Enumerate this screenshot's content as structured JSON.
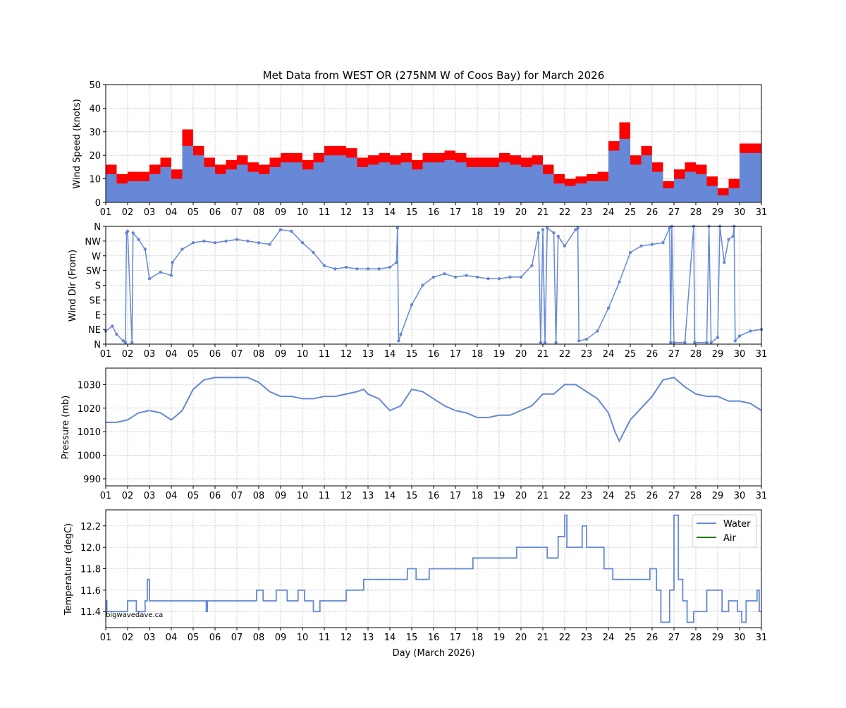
{
  "title": "Met Data from WEST OR (275NM W of Coos Bay) for March 2026",
  "watermark": "bigwavedave.ca",
  "colors": {
    "mean": "#6688d6",
    "gust": "#ff0000",
    "water": "#6688d6",
    "air": "#008000"
  },
  "chart_data": [
    {
      "type": "area",
      "ylabel": "Wind Speed (knots)",
      "ylim": [
        0,
        50
      ],
      "yticks": [
        "0",
        "10",
        "20",
        "30",
        "40",
        "50"
      ],
      "xlim": [
        1,
        31
      ],
      "xticks": [
        "01",
        "02",
        "03",
        "04",
        "05",
        "06",
        "07",
        "08",
        "09",
        "10",
        "11",
        "12",
        "13",
        "14",
        "15",
        "16",
        "17",
        "18",
        "19",
        "20",
        "21",
        "22",
        "23",
        "24",
        "25",
        "26",
        "27",
        "28",
        "29",
        "30",
        "31"
      ],
      "x_start": 1,
      "x_step": 0.5,
      "series": [
        {
          "name": "Gust",
          "values": [
            16,
            12,
            13,
            13,
            16,
            19,
            14,
            31,
            24,
            19,
            16,
            18,
            20,
            17,
            16,
            19,
            21,
            21,
            18,
            21,
            24,
            24,
            23,
            19,
            20,
            21,
            20,
            21,
            18,
            21,
            21,
            22,
            21,
            19,
            19,
            19,
            21,
            20,
            19,
            20,
            16,
            12,
            10,
            11,
            12,
            13,
            26,
            34,
            20,
            24,
            17,
            9,
            14,
            17,
            16,
            11,
            6,
            10,
            25,
            25,
            22
          ]
        },
        {
          "name": "Mean",
          "values": [
            12,
            8,
            9,
            9,
            12,
            15,
            10,
            24,
            20,
            15,
            12,
            14,
            16,
            13,
            12,
            15,
            17,
            17,
            14,
            17,
            20,
            20,
            19,
            15,
            16,
            17,
            16,
            17,
            14,
            17,
            17,
            18,
            17,
            15,
            15,
            15,
            17,
            16,
            15,
            16,
            12,
            8,
            7,
            8,
            9,
            9,
            22,
            27,
            16,
            20,
            13,
            6,
            10,
            13,
            12,
            7,
            3,
            6,
            21,
            21,
            18
          ]
        }
      ]
    },
    {
      "type": "scatter",
      "ylabel": "Wind Dir (From)",
      "ylim": [
        0,
        360
      ],
      "yticks": [
        "N",
        "NE",
        "E",
        "SE",
        "S",
        "SW",
        "W",
        "NW",
        "N"
      ],
      "xlim": [
        1,
        31
      ],
      "xticks": [
        "01",
        "02",
        "03",
        "04",
        "05",
        "06",
        "07",
        "08",
        "09",
        "10",
        "11",
        "12",
        "13",
        "14",
        "15",
        "16",
        "17",
        "18",
        "19",
        "20",
        "21",
        "22",
        "23",
        "24",
        "25",
        "26",
        "27",
        "28",
        "29",
        "30",
        "31"
      ],
      "points": [
        [
          1.0,
          40
        ],
        [
          1.3,
          55
        ],
        [
          1.5,
          30
        ],
        [
          1.8,
          10
        ],
        [
          1.9,
          5
        ],
        [
          1.95,
          340
        ],
        [
          2.0,
          345
        ],
        [
          2.2,
          5
        ],
        [
          2.25,
          340
        ],
        [
          2.5,
          320
        ],
        [
          2.8,
          290
        ],
        [
          3.0,
          200
        ],
        [
          3.5,
          220
        ],
        [
          4.0,
          210
        ],
        [
          4.05,
          250
        ],
        [
          4.5,
          290
        ],
        [
          5.0,
          310
        ],
        [
          5.5,
          315
        ],
        [
          6.0,
          310
        ],
        [
          6.5,
          315
        ],
        [
          7.0,
          320
        ],
        [
          7.5,
          315
        ],
        [
          8.0,
          310
        ],
        [
          8.5,
          305
        ],
        [
          9.0,
          350
        ],
        [
          9.5,
          345
        ],
        [
          10.0,
          310
        ],
        [
          10.5,
          280
        ],
        [
          11.0,
          240
        ],
        [
          11.5,
          230
        ],
        [
          12.0,
          235
        ],
        [
          12.5,
          230
        ],
        [
          13.0,
          230
        ],
        [
          13.5,
          230
        ],
        [
          14.0,
          235
        ],
        [
          14.3,
          250
        ],
        [
          14.35,
          355
        ],
        [
          14.4,
          10
        ],
        [
          14.5,
          30
        ],
        [
          15.0,
          120
        ],
        [
          15.5,
          180
        ],
        [
          16.0,
          205
        ],
        [
          16.5,
          215
        ],
        [
          17.0,
          205
        ],
        [
          17.5,
          210
        ],
        [
          18.0,
          205
        ],
        [
          18.5,
          200
        ],
        [
          19.0,
          200
        ],
        [
          19.5,
          205
        ],
        [
          20.0,
          205
        ],
        [
          20.5,
          240
        ],
        [
          20.8,
          340
        ],
        [
          20.9,
          5
        ],
        [
          21.0,
          350
        ],
        [
          21.1,
          5
        ],
        [
          21.2,
          355
        ],
        [
          21.5,
          340
        ],
        [
          21.6,
          5
        ],
        [
          21.7,
          330
        ],
        [
          22.0,
          300
        ],
        [
          22.5,
          350
        ],
        [
          22.6,
          355
        ],
        [
          22.65,
          10
        ],
        [
          23.0,
          15
        ],
        [
          23.5,
          40
        ],
        [
          24.0,
          110
        ],
        [
          24.5,
          190
        ],
        [
          25.0,
          280
        ],
        [
          25.5,
          300
        ],
        [
          26.0,
          305
        ],
        [
          26.5,
          310
        ],
        [
          26.8,
          355
        ],
        [
          26.85,
          5
        ],
        [
          26.9,
          360
        ],
        [
          27.0,
          5
        ],
        [
          27.5,
          5
        ],
        [
          27.9,
          360
        ],
        [
          27.95,
          5
        ],
        [
          28.5,
          5
        ],
        [
          28.6,
          360
        ],
        [
          28.7,
          5
        ],
        [
          29.0,
          20
        ],
        [
          29.1,
          360
        ],
        [
          29.3,
          250
        ],
        [
          29.5,
          320
        ],
        [
          29.7,
          330
        ],
        [
          29.75,
          360
        ],
        [
          29.8,
          10
        ],
        [
          30.0,
          25
        ],
        [
          30.5,
          40
        ],
        [
          31.0,
          45
        ]
      ]
    },
    {
      "type": "line",
      "ylabel": "Pressure (mb)",
      "ylim": [
        987,
        1037
      ],
      "yticks": [
        "990",
        "1000",
        "1010",
        "1020",
        "1030"
      ],
      "ytick_values": [
        990,
        1000,
        1010,
        1020,
        1030
      ],
      "xlim": [
        1,
        31
      ],
      "xticks": [
        "01",
        "02",
        "03",
        "04",
        "05",
        "06",
        "07",
        "08",
        "09",
        "10",
        "11",
        "12",
        "13",
        "14",
        "15",
        "16",
        "17",
        "18",
        "19",
        "20",
        "21",
        "22",
        "23",
        "24",
        "25",
        "26",
        "27",
        "28",
        "29",
        "30",
        "31"
      ],
      "points": [
        [
          1.0,
          1014
        ],
        [
          1.5,
          1014
        ],
        [
          2.0,
          1015
        ],
        [
          2.5,
          1018
        ],
        [
          3.0,
          1019
        ],
        [
          3.5,
          1018
        ],
        [
          4.0,
          1015
        ],
        [
          4.5,
          1019
        ],
        [
          5.0,
          1028
        ],
        [
          5.5,
          1032
        ],
        [
          6.0,
          1033
        ],
        [
          6.5,
          1033
        ],
        [
          7.0,
          1033
        ],
        [
          7.5,
          1033
        ],
        [
          8.0,
          1031
        ],
        [
          8.5,
          1027
        ],
        [
          9.0,
          1025
        ],
        [
          9.5,
          1025
        ],
        [
          10.0,
          1024
        ],
        [
          10.5,
          1024
        ],
        [
          11.0,
          1025
        ],
        [
          11.5,
          1025
        ],
        [
          12.0,
          1026
        ],
        [
          12.5,
          1027
        ],
        [
          12.8,
          1028
        ],
        [
          13.0,
          1026
        ],
        [
          13.5,
          1024
        ],
        [
          14.0,
          1019
        ],
        [
          14.5,
          1021
        ],
        [
          15.0,
          1028
        ],
        [
          15.5,
          1027
        ],
        [
          16.0,
          1024
        ],
        [
          16.5,
          1021
        ],
        [
          17.0,
          1019
        ],
        [
          17.5,
          1018
        ],
        [
          18.0,
          1016
        ],
        [
          18.5,
          1016
        ],
        [
          19.0,
          1017
        ],
        [
          19.5,
          1017
        ],
        [
          20.0,
          1019
        ],
        [
          20.5,
          1021
        ],
        [
          21.0,
          1026
        ],
        [
          21.5,
          1026
        ],
        [
          22.0,
          1030
        ],
        [
          22.5,
          1030
        ],
        [
          23.0,
          1027
        ],
        [
          23.5,
          1024
        ],
        [
          24.0,
          1018
        ],
        [
          24.3,
          1010
        ],
        [
          24.5,
          1006
        ],
        [
          25.0,
          1015
        ],
        [
          25.5,
          1020
        ],
        [
          26.0,
          1025
        ],
        [
          26.5,
          1032
        ],
        [
          27.0,
          1033
        ],
        [
          27.5,
          1029
        ],
        [
          28.0,
          1026
        ],
        [
          28.5,
          1025
        ],
        [
          29.0,
          1025
        ],
        [
          29.5,
          1023
        ],
        [
          30.0,
          1023
        ],
        [
          30.5,
          1022
        ],
        [
          31.0,
          1019
        ]
      ]
    },
    {
      "type": "line",
      "ylabel": "Temperature (degC)",
      "xlabel": "Day (March 2026)",
      "ylim": [
        11.25,
        12.35
      ],
      "yticks": [
        "11.4",
        "11.6",
        "11.8",
        "12.0",
        "12.2"
      ],
      "ytick_values": [
        11.4,
        11.6,
        11.8,
        12.0,
        12.2
      ],
      "xlim": [
        1,
        31
      ],
      "xticks": [
        "01",
        "02",
        "03",
        "04",
        "05",
        "06",
        "07",
        "08",
        "09",
        "10",
        "11",
        "12",
        "13",
        "14",
        "15",
        "16",
        "17",
        "18",
        "19",
        "20",
        "21",
        "22",
        "23",
        "24",
        "25",
        "26",
        "27",
        "28",
        "29",
        "30",
        "31"
      ],
      "legend": {
        "position": "top-right",
        "entries": [
          "Water",
          "Air"
        ]
      },
      "series": [
        {
          "name": "Water",
          "step": true,
          "points": [
            [
              1,
              11.5
            ],
            [
              1.05,
              11.4
            ],
            [
              2,
              11.5
            ],
            [
              2.4,
              11.4
            ],
            [
              2.8,
              11.5
            ],
            [
              2.9,
              11.7
            ],
            [
              3,
              11.5
            ],
            [
              5.6,
              11.4
            ],
            [
              5.65,
              11.5
            ],
            [
              7.9,
              11.6
            ],
            [
              8.2,
              11.5
            ],
            [
              8.8,
              11.6
            ],
            [
              9.3,
              11.5
            ],
            [
              9.8,
              11.6
            ],
            [
              10.1,
              11.5
            ],
            [
              10.5,
              11.4
            ],
            [
              10.8,
              11.5
            ],
            [
              12,
              11.6
            ],
            [
              12.8,
              11.7
            ],
            [
              14.8,
              11.8
            ],
            [
              15.2,
              11.7
            ],
            [
              15.8,
              11.8
            ],
            [
              17.8,
              11.9
            ],
            [
              19.8,
              12.0
            ],
            [
              21.2,
              11.9
            ],
            [
              21.7,
              12.1
            ],
            [
              22,
              12.3
            ],
            [
              22.1,
              12.0
            ],
            [
              22.8,
              12.2
            ],
            [
              23,
              12.0
            ],
            [
              23.8,
              11.8
            ],
            [
              24.2,
              11.7
            ],
            [
              25.9,
              11.8
            ],
            [
              26.2,
              11.6
            ],
            [
              26.4,
              11.3
            ],
            [
              26.8,
              11.6
            ],
            [
              27,
              12.3
            ],
            [
              27.2,
              11.7
            ],
            [
              27.4,
              11.5
            ],
            [
              27.6,
              11.3
            ],
            [
              27.9,
              11.4
            ],
            [
              28.5,
              11.6
            ],
            [
              28.9,
              11.6
            ],
            [
              29.2,
              11.4
            ],
            [
              29.5,
              11.5
            ],
            [
              29.9,
              11.4
            ],
            [
              30.1,
              11.3
            ],
            [
              30.3,
              11.5
            ],
            [
              30.8,
              11.6
            ],
            [
              30.9,
              11.4
            ],
            [
              31,
              11.4
            ]
          ]
        },
        {
          "name": "Air",
          "points": []
        }
      ]
    }
  ]
}
